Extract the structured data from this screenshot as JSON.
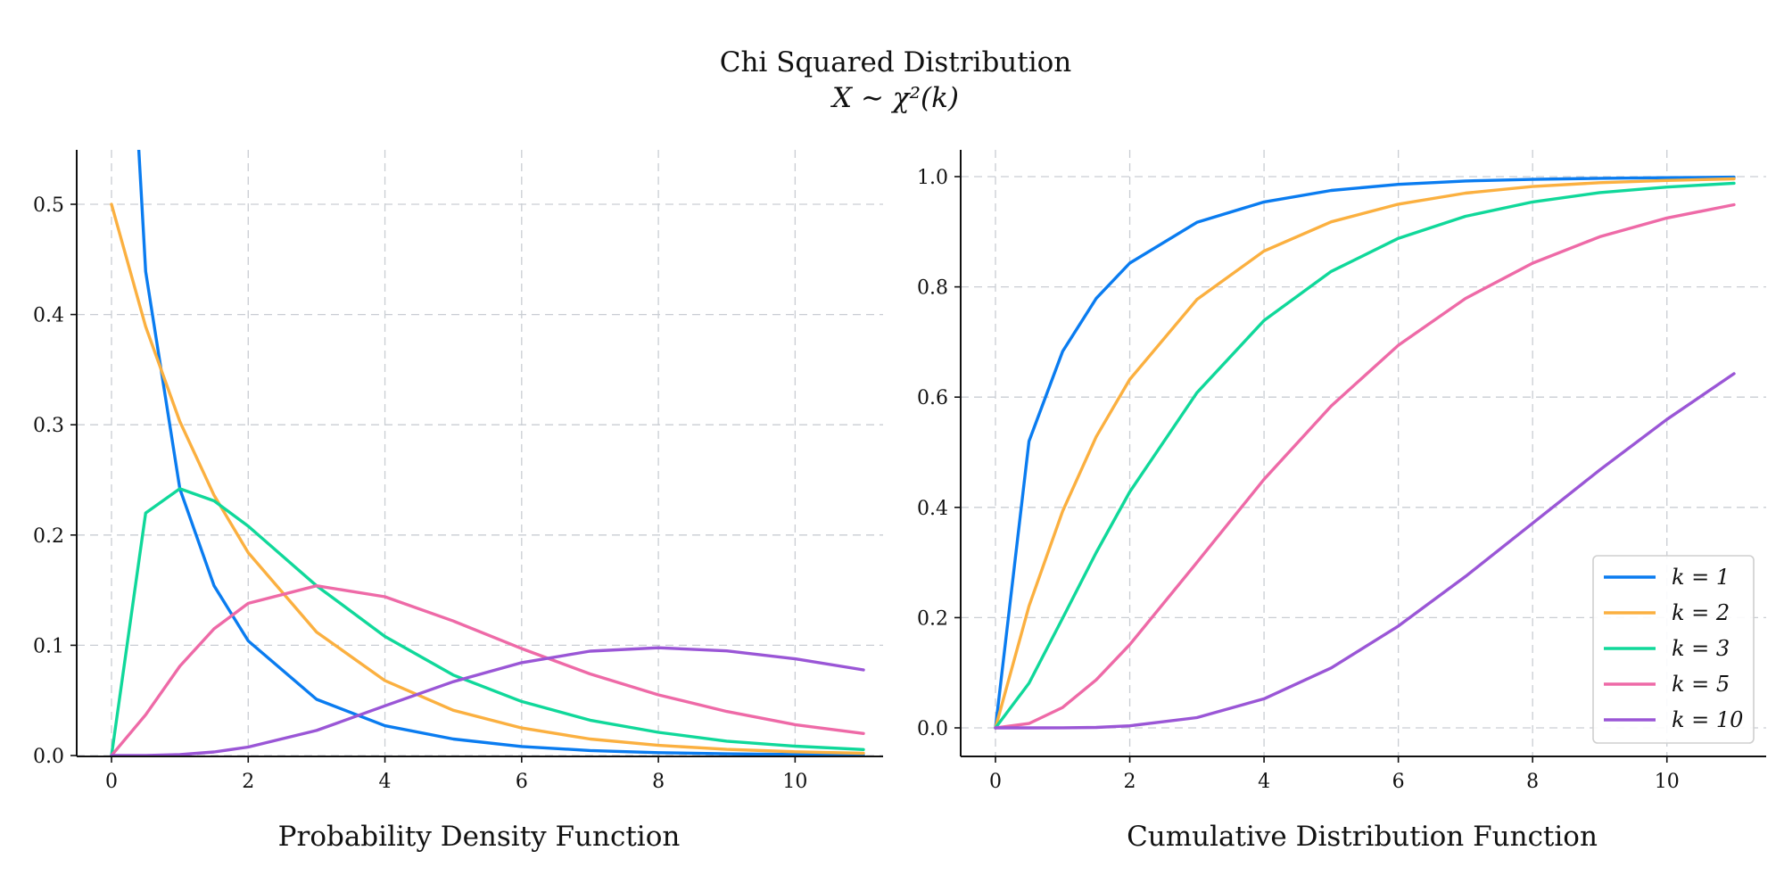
{
  "figure": {
    "title": "Chi Squared Distribution",
    "subtitle_math": "X ∼ χ²(k)"
  },
  "legend": {
    "placement": "bottom-right of right panel",
    "entries": [
      "k = 1",
      "k = 2",
      "k = 3",
      "k = 5",
      "k = 10"
    ]
  },
  "colors": {
    "k1": "#0a7cf0",
    "k2": "#fbb040",
    "k3": "#10d89a",
    "k5": "#ee6aa7",
    "k10": "#9a56d6",
    "grid": "#c9cdd3"
  },
  "chart_data": [
    {
      "type": "line",
      "title": "Probability Density Function",
      "xlim": [
        0,
        11
      ],
      "ylim": [
        0,
        0.55
      ],
      "xticks": [
        0,
        2,
        4,
        6,
        8,
        10
      ],
      "yticks": [
        0.0,
        0.1,
        0.2,
        0.3,
        0.4,
        0.5
      ],
      "xtick_labels": [
        "0",
        "2",
        "4",
        "6",
        "8",
        "10"
      ],
      "ytick_labels": [
        "0.0",
        "0.1",
        "0.2",
        "0.3",
        "0.4",
        "0.5"
      ],
      "grid": true,
      "x": [
        0,
        0.5,
        1,
        1.5,
        2,
        3,
        4,
        5,
        6,
        7,
        8,
        9,
        10,
        11
      ],
      "series": [
        {
          "name": "k = 1",
          "key": "k1",
          "values": [
            null,
            0.439,
            0.242,
            0.154,
            0.104,
            0.051,
            0.027,
            0.015,
            0.0082,
            0.0045,
            0.0026,
            0.0015,
            0.00085,
            0.0005
          ]
        },
        {
          "name": "k = 2",
          "key": "k2",
          "values": [
            0.5,
            0.389,
            0.303,
            0.236,
            0.184,
            0.112,
            0.068,
            0.041,
            0.025,
            0.015,
            0.0092,
            0.0056,
            0.0034,
            0.002
          ]
        },
        {
          "name": "k = 3",
          "key": "k3",
          "values": [
            0,
            0.22,
            0.242,
            0.231,
            0.208,
            0.154,
            0.108,
            0.073,
            0.049,
            0.032,
            0.021,
            0.013,
            0.0085,
            0.0054
          ]
        },
        {
          "name": "k = 5",
          "key": "k5",
          "values": [
            0,
            0.037,
            0.081,
            0.115,
            0.138,
            0.154,
            0.144,
            0.122,
            0.097,
            0.074,
            0.055,
            0.04,
            0.028,
            0.02
          ]
        },
        {
          "name": "k = 10",
          "key": "k10",
          "values": [
            0,
            1e-05,
            0.0008,
            0.0032,
            0.0077,
            0.0227,
            0.0451,
            0.067,
            0.0842,
            0.0947,
            0.0977,
            0.0949,
            0.0877,
            0.0777
          ]
        }
      ]
    },
    {
      "type": "line",
      "title": "Cumulative Distribution Function",
      "xlim": [
        0,
        11
      ],
      "ylim": [
        0,
        1.0
      ],
      "xticks": [
        0,
        2,
        4,
        6,
        8,
        10
      ],
      "yticks": [
        0.0,
        0.2,
        0.4,
        0.6,
        0.8,
        1.0
      ],
      "xtick_labels": [
        "0",
        "2",
        "4",
        "6",
        "8",
        "10"
      ],
      "ytick_labels": [
        "0.0",
        "0.2",
        "0.4",
        "0.6",
        "0.8",
        "1.0"
      ],
      "grid": true,
      "x": [
        0,
        0.5,
        1,
        1.5,
        2,
        3,
        4,
        5,
        6,
        7,
        8,
        9,
        10,
        11
      ],
      "series": [
        {
          "name": "k = 1",
          "key": "k1",
          "values": [
            0,
            0.52,
            0.683,
            0.779,
            0.843,
            0.917,
            0.954,
            0.975,
            0.986,
            0.992,
            0.995,
            0.997,
            0.998,
            0.999
          ]
        },
        {
          "name": "k = 2",
          "key": "k2",
          "values": [
            0,
            0.221,
            0.393,
            0.528,
            0.632,
            0.777,
            0.865,
            0.918,
            0.95,
            0.97,
            0.982,
            0.989,
            0.993,
            0.996
          ]
        },
        {
          "name": "k = 3",
          "key": "k3",
          "values": [
            0,
            0.081,
            0.199,
            0.318,
            0.428,
            0.608,
            0.739,
            0.828,
            0.888,
            0.928,
            0.954,
            0.971,
            0.981,
            0.988
          ]
        },
        {
          "name": "k = 5",
          "key": "k5",
          "values": [
            0,
            0.008,
            0.037,
            0.087,
            0.151,
            0.3,
            0.451,
            0.584,
            0.694,
            0.779,
            0.843,
            0.891,
            0.925,
            0.949
          ]
        },
        {
          "name": "k = 10",
          "key": "k10",
          "values": [
            0,
            0,
            0.0002,
            0.0008,
            0.0037,
            0.0186,
            0.0527,
            0.1088,
            0.1847,
            0.2746,
            0.3712,
            0.4679,
            0.5595,
            0.6425
          ]
        }
      ]
    }
  ]
}
